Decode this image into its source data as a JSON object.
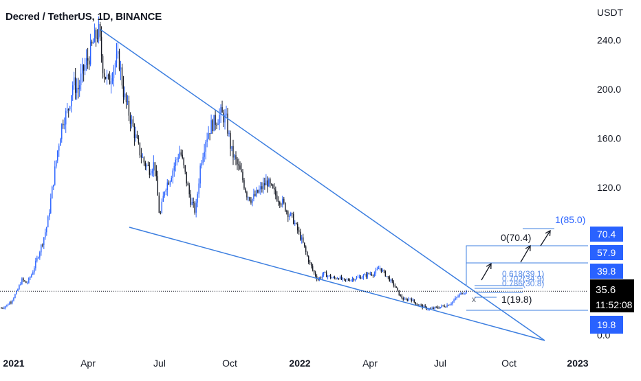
{
  "title": "Decred / TetherUS, 1D, BINANCE",
  "chart_data": {
    "type": "line",
    "title": "Decred / TetherUS, 1D, BINANCE",
    "ylabel": "USDT",
    "xlabel": "",
    "ylim": [
      0,
      255
    ],
    "grid": false,
    "x_tick_labels": [
      "2021",
      "Apr",
      "Jul",
      "Oct",
      "2022",
      "Apr",
      "Jul",
      "Oct",
      "2023"
    ],
    "y_tick_labels": [
      "240.0",
      "200.0",
      "160.0",
      "120.0",
      "0.0"
    ],
    "series": [
      {
        "values": [
          22,
          24,
          28,
          35,
          45,
          42,
          50,
          62,
          75,
          90,
          120,
          150,
          175,
          182,
          205,
          200,
          215,
          225,
          238,
          248,
          215,
          205,
          220,
          225,
          195,
          180,
          165,
          150,
          140,
          135,
          140,
          95,
          120,
          128,
          140,
          150,
          130,
          110,
          100,
          140,
          160,
          170,
          175,
          180,
          175,
          150,
          140,
          130,
          115,
          110,
          115,
          120,
          125,
          118,
          112,
          108,
          100,
          95,
          85,
          75,
          62,
          52,
          45,
          50,
          48,
          46,
          47,
          44,
          45,
          46,
          47,
          48,
          50,
          50,
          55,
          50,
          45,
          40,
          32,
          28,
          30,
          26,
          24,
          22,
          21,
          22,
          23,
          24,
          26,
          30,
          34,
          35.6
        ]
      }
    ],
    "current_price": "35.6",
    "countdown": "11:52:08",
    "price_labels": [
      "70.4",
      "57.9",
      "39.8",
      "19.8"
    ],
    "fib_labels": [
      "1(85.0)",
      "0(70.4)",
      "0.618(39.1)",
      "0.702(34.9)",
      "0.786(30.8)",
      "1(19.8)"
    ],
    "marker": "x",
    "colors": {
      "bullish": "#2962ff",
      "bearish": "#131722",
      "wedge": "#3d7fe0",
      "price_box": "#2962ff",
      "current_box": "#000000"
    }
  }
}
